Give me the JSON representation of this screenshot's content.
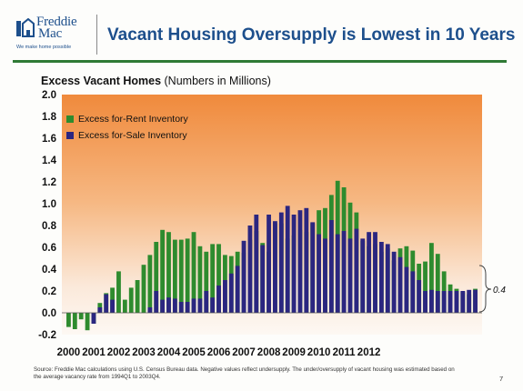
{
  "logo": {
    "name_line1": "Freddie",
    "name_line2": "Mac",
    "tagline": "We make home possible"
  },
  "title": "Vacant Housing Oversupply is Lowest in 10 Years",
  "source_note": "Source: Freddie Mac calculations using U.S. Census Bureau data. Negative values reflect undersupply. The under/oversupply of vacant housing was estimated based on the average vacancy rate from 1994Q1 to 2003Q4.",
  "page_number": "7",
  "colors": {
    "rent": "#2e8b2e",
    "sale": "#2b2680",
    "title_blue": "#1d4f8c",
    "rule_green": "#2f7a35"
  },
  "chart_data": {
    "type": "bar",
    "title": "Excess Vacant Homes",
    "subtitle": "(Numbers in Millions)",
    "stacked": true,
    "ylim": [
      -0.2,
      2.0
    ],
    "yticks": [
      "-0.2",
      "0.0",
      "0.2",
      "0.4",
      "0.6",
      "0.8",
      "1.0",
      "1.2",
      "1.4",
      "1.6",
      "1.8",
      "2.0"
    ],
    "xticks": [
      "2000",
      "2001",
      "2002",
      "2003",
      "2004",
      "2005",
      "2006",
      "2007",
      "2008",
      "2009",
      "2010",
      "2011",
      "2012"
    ],
    "grid": false,
    "legend_position": "top-left",
    "annotation": "0.4",
    "series": [
      {
        "name": "Excess for-Rent Inventory",
        "color": "#2e8b2e",
        "values": [
          -0.13,
          -0.15,
          -0.06,
          -0.16,
          -0.1,
          0.09,
          0.18,
          0.23,
          0.38,
          0.12,
          0.23,
          0.3,
          0.44,
          0.53,
          0.65,
          0.76,
          0.74,
          0.67,
          0.67,
          0.68,
          0.74,
          0.61,
          0.56,
          0.63,
          0.63,
          0.53,
          0.52,
          0.56,
          0.55,
          0.67,
          0.75,
          0.64,
          0.56,
          0.82,
          0.82,
          0.68,
          0.71,
          0.76,
          0.74,
          0.82,
          0.94,
          0.96,
          1.08,
          1.21,
          1.15,
          1.01,
          0.92,
          0.66,
          0.61,
          0.63,
          0.56,
          0.59,
          0.48,
          0.59,
          0.61,
          0.57,
          0.45,
          0.47,
          0.64,
          0.54,
          0.38,
          0.26,
          0.22,
          0.19,
          0.17,
          0.22
        ],
        "note": "stacked on top of for-sale values; reading = cumulative tops below"
      },
      {
        "name": "Excess for-Sale Inventory",
        "color": "#2b2680",
        "values": [
          0,
          0,
          0,
          0,
          -0.1,
          0.05,
          0.17,
          0.12,
          0.0,
          0.0,
          0.0,
          0.0,
          0.0,
          0.05,
          0.2,
          0.12,
          0.14,
          0.13,
          0.1,
          0.1,
          0.13,
          0.13,
          0.2,
          0.14,
          0.25,
          0.3,
          0.36,
          0.43,
          0.66,
          0.8,
          0.9,
          0.62,
          0.9,
          0.84,
          0.92,
          0.98,
          0.9,
          0.94,
          0.96,
          0.83,
          0.72,
          0.68,
          0.85,
          0.72,
          0.75,
          0.68,
          0.77,
          0.68,
          0.74,
          0.74,
          0.65,
          0.63,
          0.56,
          0.51,
          0.42,
          0.38,
          0.3,
          0.2,
          0.21,
          0.2,
          0.2,
          0.2,
          0.2,
          0.2,
          0.21,
          0.21
        ]
      }
    ]
  }
}
